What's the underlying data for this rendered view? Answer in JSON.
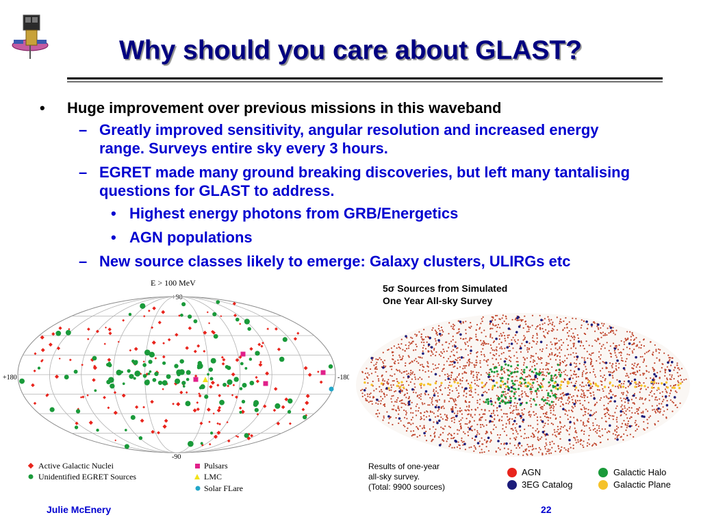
{
  "slide": {
    "title": "Why should you care about GLAST?",
    "bullets": [
      {
        "level": 1,
        "text": "Huge improvement over previous missions in this waveband"
      },
      {
        "level": 2,
        "text": "Greatly improved sensitivity, angular resolution and increased energy range. Surveys entire sky every 3 hours."
      },
      {
        "level": 2,
        "text": "EGRET made many ground breaking discoveries, but left many tantalising questions for GLAST to address."
      },
      {
        "level": 3,
        "text": "Highest energy photons from GRB/Energetics"
      },
      {
        "level": 3,
        "text": "AGN populations"
      },
      {
        "level": 2,
        "text": "New source classes likely to emerge: Galaxy clusters, ULIRGs etc"
      }
    ],
    "markers": {
      "level1": "•",
      "level2": "–",
      "level3": "•"
    }
  },
  "egret_map": {
    "energy_label": "E > 100 MeV",
    "lat_top": "+90",
    "lat_bottom": "-90",
    "lon_left": "+180",
    "lon_right": "-180",
    "legend": [
      {
        "label": "Active Galactic Nuclei",
        "color": "#e8241c",
        "shape": "diamond"
      },
      {
        "label": "Unidentified EGRET Sources",
        "color": "#1a9a3a",
        "shape": "circle"
      },
      {
        "label": "Pulsars",
        "color": "#e0208a",
        "shape": "square"
      },
      {
        "label": "LMC",
        "color": "#f2e21a",
        "shape": "triangle"
      },
      {
        "label": "Solar FLare",
        "color": "#22a6c8",
        "shape": "circle"
      }
    ]
  },
  "glast_map": {
    "title_line1": "Sources from Simulated",
    "title_sigma": "5σ",
    "title_line2": "One Year All-sky Survey",
    "caption": [
      "Results of one-year",
      "all-sky survey.",
      "(Total: 9900 sources)"
    ],
    "legend": [
      {
        "label": "AGN",
        "color": "#e8241c"
      },
      {
        "label": "Galactic Halo",
        "color": "#1a9a3a"
      },
      {
        "label": "3EG Catalog",
        "color": "#1c1c7a"
      },
      {
        "label": "Galactic Plane",
        "color": "#f5c22a"
      }
    ]
  },
  "footer": {
    "author": "Julie McEnery",
    "page": "22"
  }
}
